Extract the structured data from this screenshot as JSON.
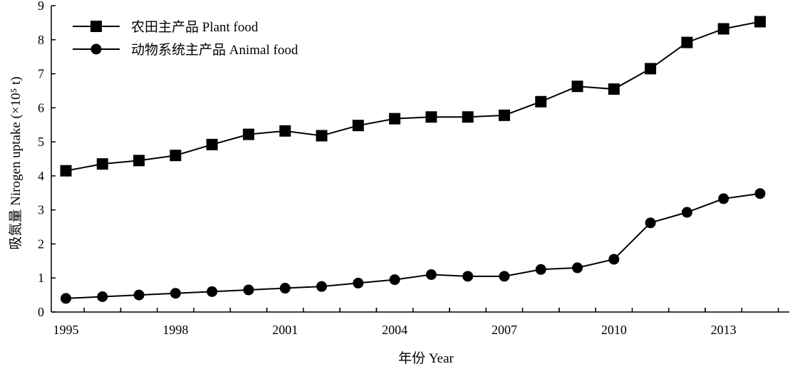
{
  "chart_data": {
    "type": "line",
    "x": [
      1995,
      1996,
      1997,
      1998,
      1999,
      2000,
      2001,
      2002,
      2003,
      2004,
      2005,
      2006,
      2007,
      2008,
      2009,
      2010,
      2011,
      2012,
      2013,
      2014
    ],
    "xticks": [
      1995,
      1998,
      2001,
      2004,
      2007,
      2010,
      2013
    ],
    "xlim": [
      1994.6,
      2014.8
    ],
    "ylim": [
      0,
      9
    ],
    "yticks": [
      0,
      1,
      2,
      3,
      4,
      5,
      6,
      7,
      8,
      9
    ],
    "xlabel": "年份 Year",
    "ylabel": "吸氮量 Nirogen uptake (×10⁵ t)",
    "grid": false,
    "legend_position": "top-left",
    "series": [
      {
        "name": "农田主产品 Plant food",
        "marker": "square",
        "color": "#000000",
        "values": [
          4.15,
          4.35,
          4.45,
          4.6,
          4.92,
          5.22,
          5.32,
          5.18,
          5.48,
          5.68,
          5.73,
          5.73,
          5.78,
          6.18,
          6.63,
          6.55,
          7.15,
          7.92,
          8.32,
          8.53
        ]
      },
      {
        "name": "动物系统主产品 Animal food",
        "marker": "circle",
        "color": "#000000",
        "values": [
          0.4,
          0.45,
          0.5,
          0.55,
          0.6,
          0.65,
          0.7,
          0.75,
          0.85,
          0.95,
          1.1,
          1.05,
          1.05,
          1.25,
          1.3,
          1.55,
          2.62,
          2.93,
          3.33,
          3.48
        ]
      }
    ]
  }
}
